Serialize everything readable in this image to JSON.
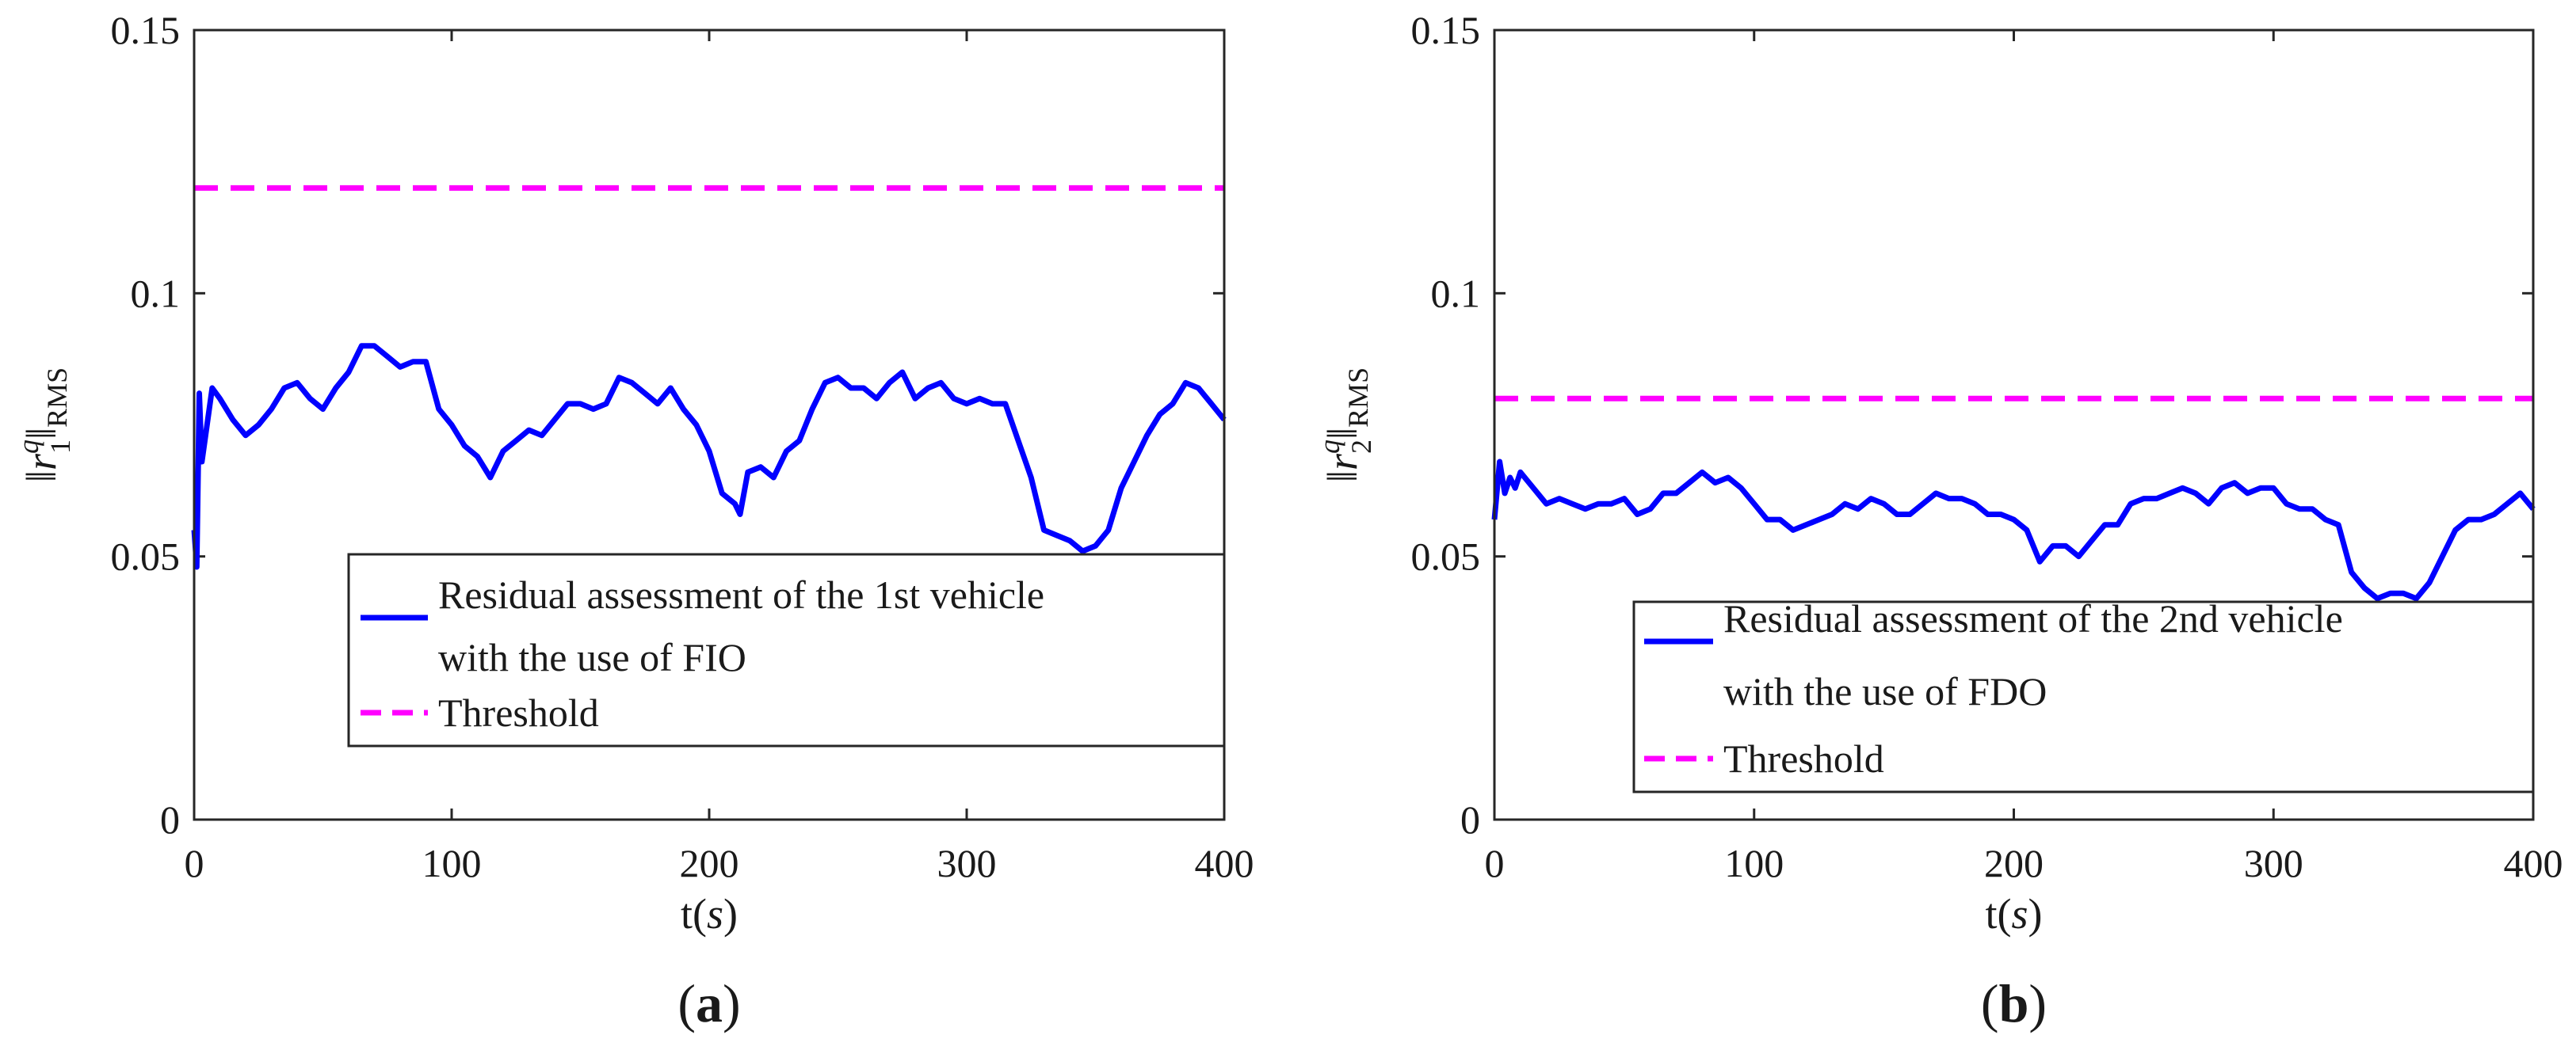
{
  "chart_data": [
    {
      "type": "line",
      "panel_label": "a",
      "xlabel_main": "t",
      "xlabel_unit": "s",
      "ylabel_subscript_index": "1",
      "ylabel_superscript": "q",
      "ylabel_norm_subscript": "RMS",
      "xlim": [
        0,
        400
      ],
      "ylim": [
        0,
        0.15
      ],
      "xticks": [
        "0",
        "100",
        "200",
        "300",
        "400"
      ],
      "yticks": [
        "0",
        "0.05",
        "0.1",
        "0.15"
      ],
      "legend_position": "lower-right",
      "series": [
        {
          "name": "Residual assessment of the 1st vehicle with the use of FIO",
          "legend_lines": [
            "Residual assessment of the 1st vehicle",
            "with the use of FIO"
          ],
          "color": "#0000ff",
          "style": "solid",
          "x": [
            0,
            1,
            2,
            3,
            5,
            7,
            10,
            15,
            20,
            25,
            30,
            35,
            40,
            45,
            50,
            55,
            60,
            65,
            70,
            75,
            80,
            85,
            90,
            95,
            100,
            105,
            110,
            115,
            120,
            125,
            130,
            135,
            140,
            145,
            150,
            155,
            160,
            165,
            170,
            175,
            180,
            185,
            190,
            195,
            200,
            205,
            210,
            212,
            215,
            220,
            225,
            230,
            235,
            240,
            245,
            250,
            255,
            260,
            265,
            270,
            275,
            280,
            285,
            290,
            295,
            300,
            305,
            310,
            315,
            320,
            325,
            330,
            335,
            340,
            345,
            350,
            355,
            360,
            365,
            370,
            375,
            380,
            385,
            390,
            395,
            400
          ],
          "values": [
            0.055,
            0.048,
            0.081,
            0.068,
            0.075,
            0.082,
            0.08,
            0.076,
            0.073,
            0.075,
            0.078,
            0.082,
            0.083,
            0.08,
            0.078,
            0.082,
            0.085,
            0.09,
            0.09,
            0.088,
            0.086,
            0.087,
            0.087,
            0.078,
            0.075,
            0.071,
            0.069,
            0.065,
            0.07,
            0.072,
            0.074,
            0.073,
            0.076,
            0.079,
            0.079,
            0.078,
            0.079,
            0.084,
            0.083,
            0.081,
            0.079,
            0.082,
            0.078,
            0.075,
            0.07,
            0.062,
            0.06,
            0.058,
            0.066,
            0.067,
            0.065,
            0.07,
            0.072,
            0.078,
            0.083,
            0.084,
            0.082,
            0.082,
            0.08,
            0.083,
            0.085,
            0.08,
            0.082,
            0.083,
            0.08,
            0.079,
            0.08,
            0.079,
            0.079,
            0.072,
            0.065,
            0.055,
            0.054,
            0.053,
            0.051,
            0.052,
            0.055,
            0.063,
            0.068,
            0.073,
            0.077,
            0.079,
            0.083,
            0.082,
            0.079,
            0.076
          ]
        },
        {
          "name": "Threshold",
          "color": "#ff00ff",
          "style": "dashed",
          "x": [
            0,
            400
          ],
          "values": [
            0.12,
            0.12
          ]
        }
      ]
    },
    {
      "type": "line",
      "panel_label": "b",
      "xlabel_main": "t",
      "xlabel_unit": "s",
      "ylabel_subscript_index": "2",
      "ylabel_superscript": "q",
      "ylabel_norm_subscript": "RMS",
      "xlim": [
        0,
        400
      ],
      "ylim": [
        0,
        0.15
      ],
      "xticks": [
        "0",
        "100",
        "200",
        "300",
        "400"
      ],
      "yticks": [
        "0",
        "0.05",
        "0.1",
        "0.15"
      ],
      "legend_position": "lower-right",
      "series": [
        {
          "name": "Residual assessment of the 2nd vehicle with the use of FDO",
          "legend_lines": [
            "Residual assessment of the 2nd vehicle",
            "with the use of FDO"
          ],
          "color": "#0000ff",
          "style": "solid",
          "x": [
            0,
            2,
            4,
            6,
            8,
            10,
            15,
            20,
            25,
            30,
            35,
            40,
            45,
            50,
            55,
            60,
            65,
            70,
            75,
            80,
            85,
            90,
            95,
            100,
            105,
            110,
            115,
            120,
            125,
            130,
            135,
            140,
            145,
            150,
            155,
            160,
            165,
            170,
            175,
            180,
            185,
            190,
            195,
            200,
            205,
            210,
            215,
            220,
            225,
            230,
            235,
            240,
            245,
            250,
            255,
            260,
            265,
            270,
            275,
            280,
            285,
            290,
            295,
            300,
            305,
            310,
            315,
            320,
            325,
            330,
            335,
            340,
            345,
            350,
            355,
            360,
            365,
            370,
            375,
            380,
            385,
            390,
            395,
            400
          ],
          "values": [
            0.057,
            0.068,
            0.062,
            0.065,
            0.063,
            0.066,
            0.063,
            0.06,
            0.061,
            0.06,
            0.059,
            0.06,
            0.06,
            0.061,
            0.058,
            0.059,
            0.062,
            0.062,
            0.064,
            0.066,
            0.064,
            0.065,
            0.063,
            0.06,
            0.057,
            0.057,
            0.055,
            0.056,
            0.057,
            0.058,
            0.06,
            0.059,
            0.061,
            0.06,
            0.058,
            0.058,
            0.06,
            0.062,
            0.061,
            0.061,
            0.06,
            0.058,
            0.058,
            0.057,
            0.055,
            0.049,
            0.052,
            0.052,
            0.05,
            0.053,
            0.056,
            0.056,
            0.06,
            0.061,
            0.061,
            0.062,
            0.063,
            0.062,
            0.06,
            0.063,
            0.064,
            0.062,
            0.063,
            0.063,
            0.06,
            0.059,
            0.059,
            0.057,
            0.056,
            0.047,
            0.044,
            0.042,
            0.043,
            0.043,
            0.042,
            0.045,
            0.05,
            0.055,
            0.057,
            0.057,
            0.058,
            0.06,
            0.062,
            0.059
          ]
        },
        {
          "name": "Threshold",
          "color": "#ff00ff",
          "style": "dashed",
          "x": [
            0,
            400
          ],
          "values": [
            0.08,
            0.08
          ]
        }
      ]
    }
  ]
}
